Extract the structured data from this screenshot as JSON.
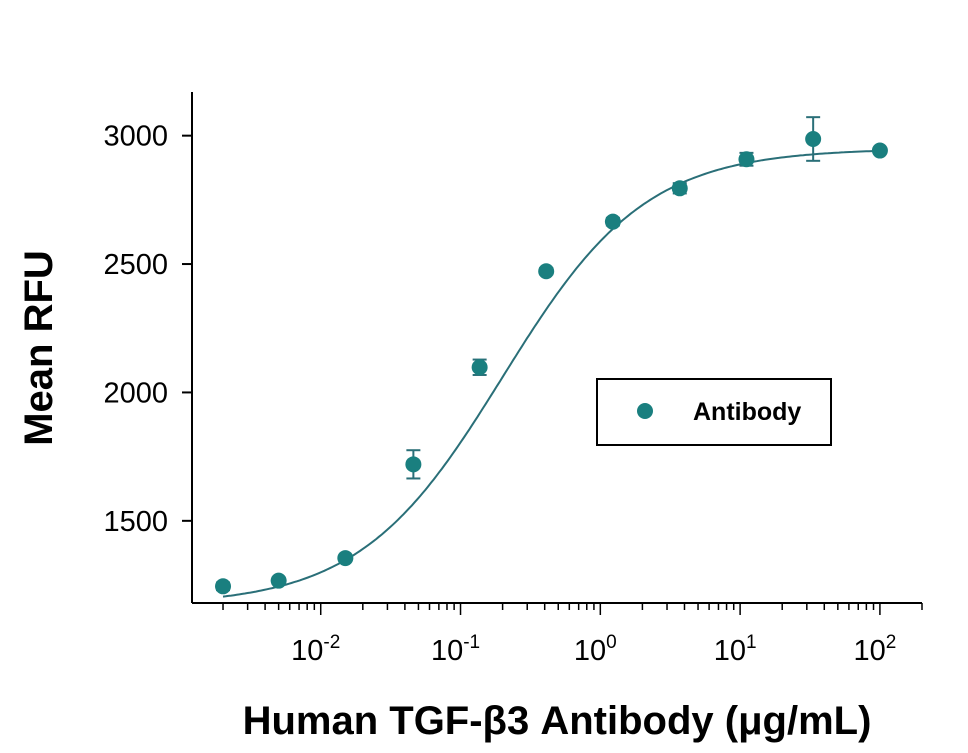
{
  "chart_data": {
    "type": "scatter",
    "xlabel": "Human TGF-β3 Antibody (μg/mL)",
    "ylabel": "Mean RFU",
    "xscale": "log",
    "xlim": [
      0.0012,
      200
    ],
    "ylim": [
      1180,
      3170
    ],
    "x_ticks": [
      {
        "value": 0.01,
        "base": "10",
        "exp": "-2"
      },
      {
        "value": 0.1,
        "base": "10",
        "exp": "-1"
      },
      {
        "value": 1,
        "base": "10",
        "exp": "0"
      },
      {
        "value": 10,
        "base": "10",
        "exp": "1"
      },
      {
        "value": 100,
        "base": "10",
        "exp": "2"
      }
    ],
    "y_ticks": [
      {
        "value": 1500,
        "label": "1500"
      },
      {
        "value": 2000,
        "label": "2000"
      },
      {
        "value": 2500,
        "label": "2500"
      },
      {
        "value": 3000,
        "label": "3000"
      }
    ],
    "color": "#1a7f7f",
    "curve_color": "#2a6f78",
    "legend": {
      "position": "center-right",
      "border": true
    },
    "grid": false,
    "series": [
      {
        "name": "Antibody",
        "x": [
          0.002,
          0.005,
          0.015,
          0.046,
          0.137,
          0.41,
          1.23,
          3.7,
          11.1,
          33.3,
          100
        ],
        "y": [
          1245,
          1267,
          1355,
          1720,
          2098,
          2472,
          2665,
          2795,
          2908,
          2987,
          2942
        ],
        "err": [
          15,
          12,
          10,
          55,
          30,
          12,
          15,
          20,
          25,
          85,
          10
        ]
      }
    ],
    "fit": {
      "bottom": 1170,
      "top": 2950,
      "ec50": 0.2,
      "hill": 0.85
    }
  }
}
